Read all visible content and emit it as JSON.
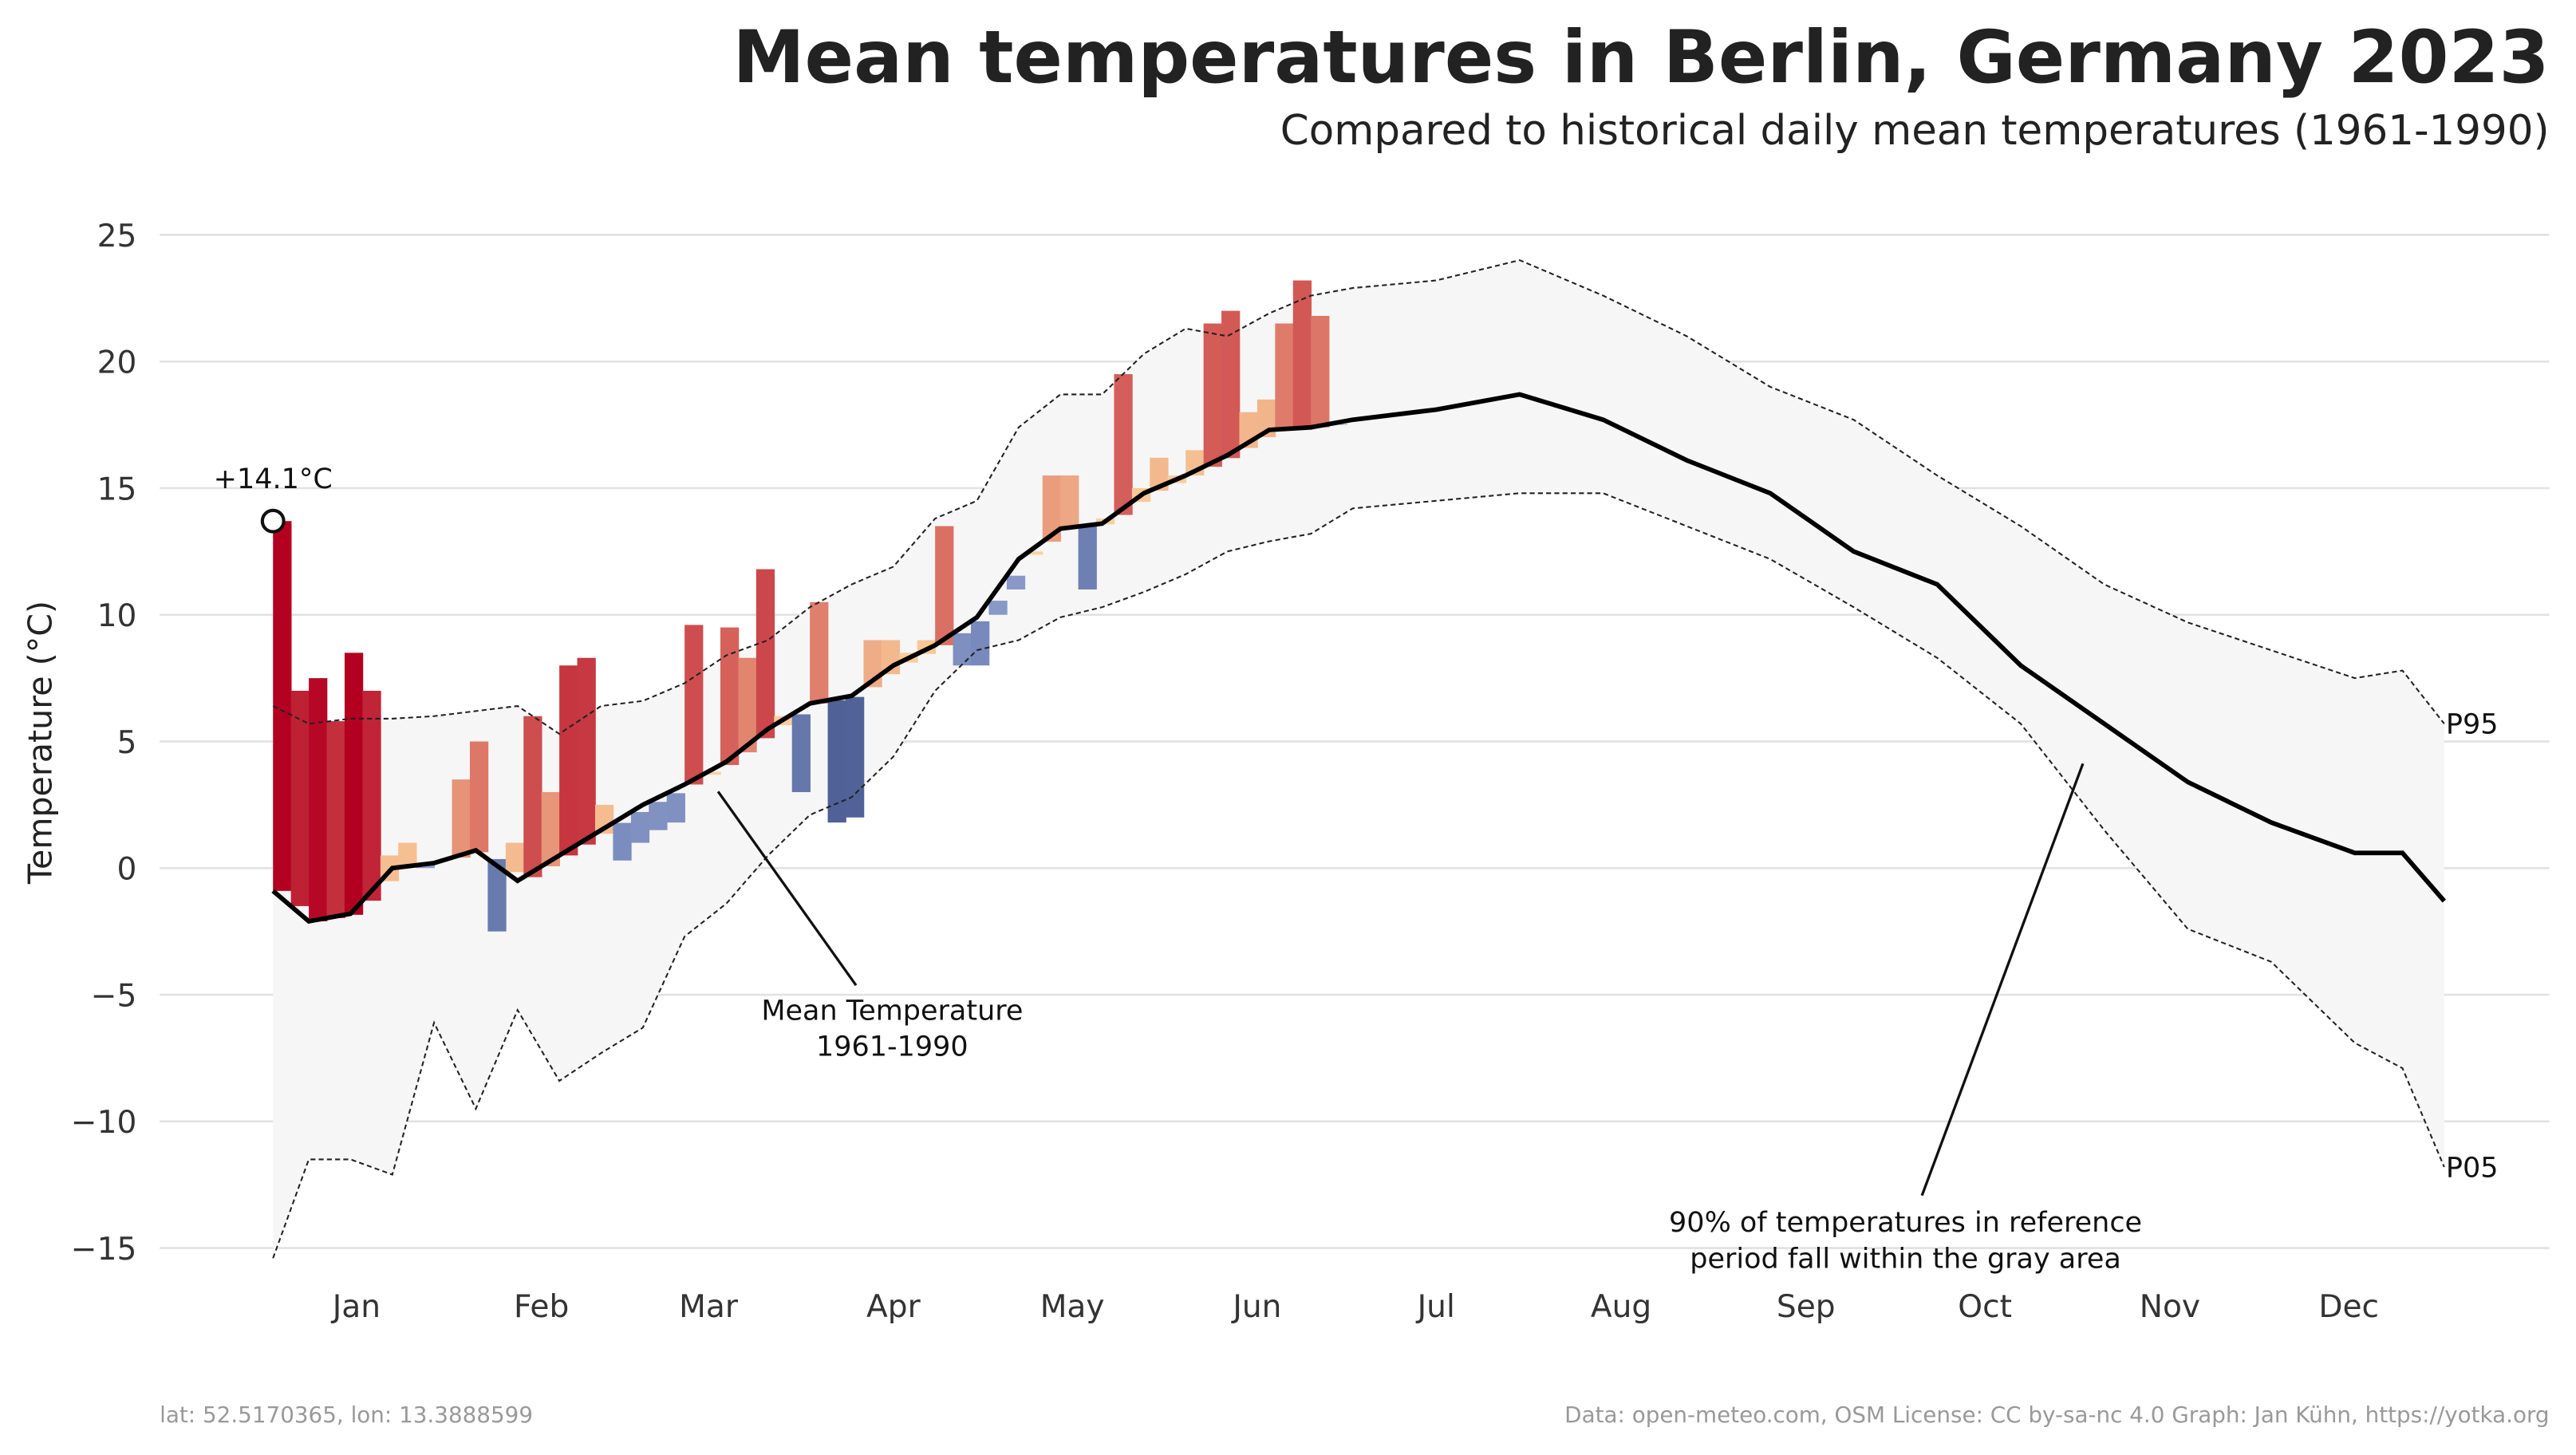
{
  "chart_data": {
    "type": "line",
    "title": "Mean temperatures in Berlin, Germany 2023",
    "subtitle": "Compared to historical daily mean temperatures (1961-1990)",
    "y_label": "Temperature (°C)",
    "xlim": [
      1,
      365
    ],
    "xticks": [
      {
        "value": 15,
        "label": "Jan"
      },
      {
        "value": 46,
        "label": "Feb"
      },
      {
        "value": 74,
        "label": "Mar"
      },
      {
        "value": 105,
        "label": "Apr"
      },
      {
        "value": 135,
        "label": "May"
      },
      {
        "value": 166,
        "label": "Jun"
      },
      {
        "value": 196,
        "label": "Jul"
      },
      {
        "value": 227,
        "label": "Aug"
      },
      {
        "value": 258,
        "label": "Sep"
      },
      {
        "value": 288,
        "label": "Oct"
      },
      {
        "value": 319,
        "label": "Nov"
      },
      {
        "value": 349,
        "label": "Dec"
      }
    ],
    "ylim": [
      -15,
      25
    ],
    "yticks": [
      25,
      20,
      15,
      10,
      5,
      0,
      {
        "value": -5,
        "label": "−5"
      },
      {
        "value": -10,
        "label": "−10"
      },
      {
        "value": -15,
        "label": "−15"
      }
    ],
    "grid": true,
    "band_color": "#f6f6f6",
    "x": [
      1,
      7,
      14,
      21,
      28,
      35,
      42,
      49,
      56,
      63,
      70,
      77,
      84,
      91,
      98,
      105,
      112,
      119,
      126,
      133,
      140,
      147,
      154,
      161,
      168,
      175,
      182,
      196,
      210,
      224,
      238,
      252,
      266,
      280,
      294,
      308,
      322,
      336,
      350,
      358,
      365
    ],
    "series": [
      {
        "color": "#000000",
        "values": [
          -0.9,
          -2.1,
          -1.8,
          0.0,
          0.2,
          0.7,
          -0.5,
          0.5,
          1.5,
          2.5,
          3.3,
          4.2,
          5.5,
          6.5,
          6.8,
          8.0,
          8.8,
          9.9,
          12.2,
          13.4,
          13.6,
          14.8,
          15.5,
          16.3,
          17.3,
          17.4,
          17.7,
          18.1,
          18.7,
          17.7,
          16.1,
          14.8,
          12.5,
          11.2,
          8.0,
          5.7,
          3.4,
          1.8,
          0.6,
          0.6,
          -1.3
        ]
      },
      {
        "name": "P95",
        "color": "#222222",
        "values": [
          6.4,
          5.7,
          5.9,
          5.9,
          6.0,
          6.2,
          6.4,
          5.3,
          6.4,
          6.6,
          7.3,
          8.4,
          9.0,
          10.3,
          11.2,
          11.9,
          13.8,
          14.5,
          17.4,
          18.7,
          18.7,
          20.3,
          21.3,
          21.0,
          21.9,
          22.6,
          22.9,
          23.2,
          24.0,
          22.6,
          21.0,
          19.0,
          17.7,
          15.5,
          13.5,
          11.2,
          9.7,
          8.6,
          7.5,
          7.8,
          5.7
        ]
      },
      {
        "name": "P05",
        "color": "#222222",
        "values": [
          -15.4,
          -11.5,
          -11.5,
          -12.1,
          -6.1,
          -9.5,
          -5.6,
          -8.4,
          -7.3,
          -6.3,
          -2.7,
          -1.4,
          0.5,
          2.1,
          2.8,
          4.4,
          7.0,
          8.6,
          9.0,
          9.9,
          10.3,
          10.9,
          11.6,
          12.5,
          12.9,
          13.2,
          14.2,
          14.5,
          14.8,
          14.8,
          13.5,
          12.2,
          10.3,
          8.3,
          5.7,
          1.5,
          -2.4,
          -3.7,
          -6.9,
          -7.9,
          -11.8
        ]
      }
    ],
    "observed": {
      "x": [
        1,
        4,
        7,
        10,
        13,
        16,
        19,
        22,
        25,
        28,
        31,
        34,
        37,
        40,
        43,
        46,
        49,
        52,
        55,
        58,
        61,
        64,
        67,
        70,
        73,
        76,
        79,
        82,
        85,
        88,
        91,
        94,
        97,
        100,
        103,
        106,
        109,
        112,
        115,
        118,
        121,
        124,
        127,
        130,
        133,
        136,
        139,
        142,
        145,
        148,
        151,
        154,
        157,
        160,
        163,
        166,
        169,
        172,
        175,
        178
      ],
      "values": [
        13.7,
        7.0,
        7.5,
        5.8,
        8.5,
        7.0,
        0.5,
        1.0,
        0.0,
        0.2,
        3.5,
        5.0,
        -2.5,
        1.0,
        6.0,
        3.0,
        8.0,
        8.3,
        2.5,
        0.3,
        1.0,
        1.5,
        1.8,
        9.6,
        3.8,
        9.5,
        8.3,
        11.8,
        6.0,
        3.0,
        10.5,
        1.8,
        2.0,
        9.0,
        9.0,
        8.5,
        9.0,
        13.5,
        8.0,
        8.0,
        10.0,
        11.0,
        12.5,
        15.5,
        15.5,
        11.0,
        13.8,
        19.5,
        15.0,
        16.2,
        15.5,
        16.5,
        21.5,
        22.0,
        18.0,
        18.5,
        21.5,
        23.2,
        21.8,
        17.5
      ],
      "colors": {
        "above": [
          "#fdd49e",
          "#b30021"
        ],
        "below": [
          "#8fa0cf",
          "#0b1d5a"
        ]
      }
    },
    "max_label": "+14.1°C",
    "mean_annotation": [
      "Mean Temperature",
      "1961-1990"
    ],
    "band_annotation": [
      "90% of temperatures in reference",
      "period fall within the gray area"
    ],
    "footer_left": "lat: 52.5170365, lon: 13.3888599",
    "footer_right": "Data: open-meteo.com, OSM  License: CC by-sa-nc 4.0  Graph: Jan Kühn, https://yotka.org"
  }
}
